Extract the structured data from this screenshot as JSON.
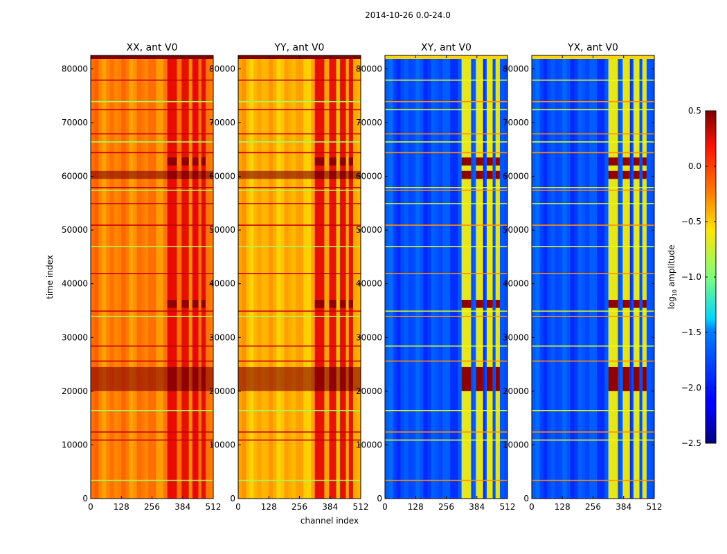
{
  "chart_data": {
    "type": "heatmap",
    "suptitle": "2014-10-26 0.0-24.0",
    "xlabel": "channel index",
    "ylabel": "time index",
    "xlim": [
      0,
      512
    ],
    "ylim": [
      0,
      82500
    ],
    "xticks": [
      0,
      128,
      256,
      384,
      512
    ],
    "yticks": [
      0,
      10000,
      20000,
      30000,
      40000,
      50000,
      60000,
      70000,
      80000
    ],
    "panels": [
      {
        "title": "XX, ant V0",
        "mean_log10_amplitude": -0.25,
        "band_log10_amplitude": 0.2
      },
      {
        "title": "YY, ant V0",
        "mean_log10_amplitude": -0.4,
        "band_log10_amplitude": 0.2
      },
      {
        "title": "XY, ant V0",
        "mean_log10_amplitude": -1.9,
        "band_log10_amplitude": -0.6
      },
      {
        "title": "YX, ant V0",
        "mean_log10_amplitude": -1.9,
        "band_log10_amplitude": -0.6
      }
    ],
    "band_channels": [
      [
        320,
        360
      ],
      [
        380,
        410
      ],
      [
        425,
        450
      ],
      [
        462,
        480
      ]
    ],
    "bright_time_bands": [
      [
        20000,
        24500
      ],
      [
        59500,
        61000
      ],
      [
        62000,
        63500
      ],
      [
        35500,
        37000
      ]
    ],
    "colorbar": {
      "label": "log10 amplitude",
      "label_base": "log",
      "label_sub": "10",
      "label_rest": " amplitude",
      "range": [
        -2.5,
        0.5
      ],
      "ticks": [
        "0.5",
        "0.0",
        "−0.5",
        "−1.0",
        "−1.5",
        "−2.0",
        "−2.5"
      ],
      "colormap": "jet"
    }
  }
}
